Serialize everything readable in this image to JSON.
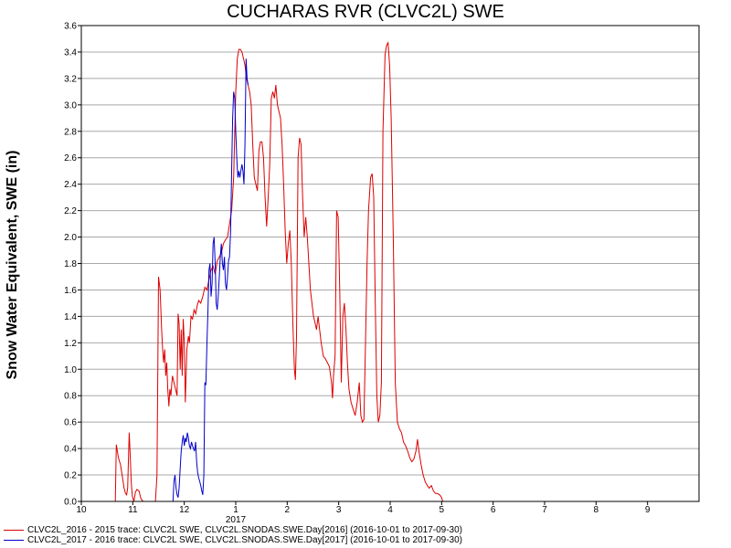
{
  "chart_data": {
    "type": "line",
    "title": "CUCHARAS RVR (CLVC2L) SWE",
    "ylabel": "Snow Water Equivalent, SWE (in)",
    "xlabel": "",
    "ylim": [
      0,
      3.6
    ],
    "yticks": [
      "0.0",
      "0.2",
      "0.4",
      "0.6",
      "0.8",
      "1.0",
      "1.2",
      "1.4",
      "1.6",
      "1.8",
      "2.0",
      "2.2",
      "2.4",
      "2.6",
      "2.8",
      "3.0",
      "3.2",
      "3.4",
      "3.6"
    ],
    "xlim": [
      10,
      22
    ],
    "xticks": [
      {
        "x": 10,
        "label": "10"
      },
      {
        "x": 11,
        "label": "11"
      },
      {
        "x": 12,
        "label": "12"
      },
      {
        "x": 13,
        "label": "1"
      },
      {
        "x": 14,
        "label": "2"
      },
      {
        "x": 15,
        "label": "3"
      },
      {
        "x": 16,
        "label": "4"
      },
      {
        "x": 17,
        "label": "5"
      },
      {
        "x": 18,
        "label": "6"
      },
      {
        "x": 19,
        "label": "7"
      },
      {
        "x": 20,
        "label": "8"
      },
      {
        "x": 21,
        "label": "9"
      }
    ],
    "year_label": {
      "x": 13,
      "label": "2017"
    },
    "grid": true,
    "legend_position": "bottom-left",
    "series": [
      {
        "name": "CLVC2L_2016 - 2015 trace: CLVC2L SWE, CLVC2L.SNODAS.SWE.Day[2016] (2016-10-01 to 2017-09-30)",
        "color": "#dd0000",
        "points": [
          [
            10.66,
            0.0
          ],
          [
            10.68,
            0.43
          ],
          [
            10.72,
            0.33
          ],
          [
            10.76,
            0.28
          ],
          [
            10.8,
            0.18
          ],
          [
            10.83,
            0.1
          ],
          [
            10.86,
            0.06
          ],
          [
            10.88,
            0.05
          ],
          [
            10.9,
            0.1
          ],
          [
            10.93,
            0.52
          ],
          [
            10.95,
            0.35
          ],
          [
            10.97,
            0.15
          ],
          [
            10.99,
            0.04
          ],
          [
            11.02,
            0.0
          ],
          [
            11.05,
            0.07
          ],
          [
            11.08,
            0.09
          ],
          [
            11.12,
            0.08
          ],
          [
            11.16,
            0.02
          ],
          [
            11.2,
            0.0
          ],
          [
            11.44,
            0.0
          ],
          [
            11.47,
            0.2
          ],
          [
            11.5,
            1.7
          ],
          [
            11.53,
            1.6
          ],
          [
            11.56,
            1.3
          ],
          [
            11.58,
            1.15
          ],
          [
            11.6,
            1.05
          ],
          [
            11.62,
            1.15
          ],
          [
            11.64,
            0.95
          ],
          [
            11.66,
            1.05
          ],
          [
            11.68,
            0.85
          ],
          [
            11.7,
            0.72
          ],
          [
            11.72,
            0.85
          ],
          [
            11.74,
            0.8
          ],
          [
            11.77,
            0.95
          ],
          [
            11.8,
            0.9
          ],
          [
            11.83,
            0.85
          ],
          [
            11.86,
            0.8
          ],
          [
            11.88,
            1.42
          ],
          [
            11.9,
            1.35
          ],
          [
            11.92,
            1.0
          ],
          [
            11.94,
            1.3
          ],
          [
            11.96,
            0.95
          ],
          [
            11.98,
            1.38
          ],
          [
            12.0,
            1.2
          ],
          [
            12.02,
            0.75
          ],
          [
            12.05,
            1.15
          ],
          [
            12.08,
            1.25
          ],
          [
            12.1,
            1.2
          ],
          [
            12.13,
            1.4
          ],
          [
            12.16,
            1.38
          ],
          [
            12.19,
            1.45
          ],
          [
            12.22,
            1.42
          ],
          [
            12.25,
            1.48
          ],
          [
            12.28,
            1.52
          ],
          [
            12.32,
            1.5
          ],
          [
            12.36,
            1.55
          ],
          [
            12.4,
            1.62
          ],
          [
            12.44,
            1.6
          ],
          [
            12.48,
            1.68
          ],
          [
            12.52,
            1.75
          ],
          [
            12.56,
            1.78
          ],
          [
            12.6,
            1.72
          ],
          [
            12.64,
            1.82
          ],
          [
            12.68,
            1.85
          ],
          [
            12.72,
            1.88
          ],
          [
            12.76,
            1.95
          ],
          [
            12.8,
            1.98
          ],
          [
            12.84,
            2.0
          ],
          [
            12.88,
            2.1
          ],
          [
            12.92,
            2.2
          ],
          [
            12.96,
            2.45
          ],
          [
            13.0,
            3.1
          ],
          [
            13.03,
            3.35
          ],
          [
            13.06,
            3.42
          ],
          [
            13.09,
            3.42
          ],
          [
            13.12,
            3.4
          ],
          [
            13.15,
            3.35
          ],
          [
            13.18,
            3.3
          ],
          [
            13.21,
            3.2
          ],
          [
            13.24,
            3.15
          ],
          [
            13.27,
            3.1
          ],
          [
            13.3,
            3.0
          ],
          [
            13.33,
            2.7
          ],
          [
            13.36,
            2.45
          ],
          [
            13.39,
            2.4
          ],
          [
            13.42,
            2.35
          ],
          [
            13.45,
            2.65
          ],
          [
            13.48,
            2.72
          ],
          [
            13.51,
            2.72
          ],
          [
            13.54,
            2.6
          ],
          [
            13.57,
            2.3
          ],
          [
            13.6,
            2.08
          ],
          [
            13.63,
            2.3
          ],
          [
            13.66,
            2.55
          ],
          [
            13.69,
            3.05
          ],
          [
            13.72,
            3.1
          ],
          [
            13.75,
            3.05
          ],
          [
            13.78,
            3.15
          ],
          [
            13.81,
            3.0
          ],
          [
            13.84,
            2.95
          ],
          [
            13.87,
            2.9
          ],
          [
            13.9,
            2.7
          ],
          [
            13.93,
            2.4
          ],
          [
            13.96,
            2.05
          ],
          [
            13.99,
            1.8
          ],
          [
            14.02,
            1.95
          ],
          [
            14.05,
            2.05
          ],
          [
            14.08,
            1.8
          ],
          [
            14.11,
            1.35
          ],
          [
            14.14,
            1.0
          ],
          [
            14.16,
            0.92
          ],
          [
            14.18,
            1.25
          ],
          [
            14.21,
            2.6
          ],
          [
            14.24,
            2.75
          ],
          [
            14.27,
            2.7
          ],
          [
            14.3,
            2.3
          ],
          [
            14.33,
            2.0
          ],
          [
            14.36,
            2.15
          ],
          [
            14.39,
            2.0
          ],
          [
            14.42,
            1.8
          ],
          [
            14.45,
            1.6
          ],
          [
            14.48,
            1.5
          ],
          [
            14.51,
            1.4
          ],
          [
            14.54,
            1.35
          ],
          [
            14.57,
            1.3
          ],
          [
            14.6,
            1.4
          ],
          [
            14.63,
            1.3
          ],
          [
            14.66,
            1.2
          ],
          [
            14.7,
            1.1
          ],
          [
            14.74,
            1.08
          ],
          [
            14.78,
            1.05
          ],
          [
            14.82,
            1.02
          ],
          [
            14.86,
            0.9
          ],
          [
            14.88,
            0.78
          ],
          [
            14.9,
            0.95
          ],
          [
            14.93,
            1.1
          ],
          [
            14.96,
            2.2
          ],
          [
            14.99,
            2.15
          ],
          [
            15.02,
            1.6
          ],
          [
            15.05,
            0.9
          ],
          [
            15.08,
            1.4
          ],
          [
            15.11,
            1.5
          ],
          [
            15.14,
            1.3
          ],
          [
            15.17,
            1.05
          ],
          [
            15.2,
            0.85
          ],
          [
            15.24,
            0.75
          ],
          [
            15.28,
            0.7
          ],
          [
            15.32,
            0.65
          ],
          [
            15.36,
            0.75
          ],
          [
            15.4,
            0.9
          ],
          [
            15.43,
            0.65
          ],
          [
            15.46,
            0.6
          ],
          [
            15.49,
            0.62
          ],
          [
            15.52,
            1.2
          ],
          [
            15.55,
            1.8
          ],
          [
            15.58,
            2.2
          ],
          [
            15.62,
            2.45
          ],
          [
            15.65,
            2.48
          ],
          [
            15.68,
            2.3
          ],
          [
            15.71,
            1.5
          ],
          [
            15.74,
            0.8
          ],
          [
            15.77,
            0.6
          ],
          [
            15.8,
            0.65
          ],
          [
            15.83,
            0.9
          ],
          [
            15.86,
            2.8
          ],
          [
            15.9,
            3.38
          ],
          [
            15.93,
            3.45
          ],
          [
            15.96,
            3.47
          ],
          [
            15.99,
            3.3
          ],
          [
            16.02,
            2.9
          ],
          [
            16.06,
            2.0
          ],
          [
            16.1,
            0.9
          ],
          [
            16.14,
            0.6
          ],
          [
            16.18,
            0.55
          ],
          [
            16.22,
            0.52
          ],
          [
            16.26,
            0.45
          ],
          [
            16.3,
            0.42
          ],
          [
            16.34,
            0.38
          ],
          [
            16.38,
            0.33
          ],
          [
            16.42,
            0.3
          ],
          [
            16.46,
            0.32
          ],
          [
            16.5,
            0.38
          ],
          [
            16.53,
            0.47
          ],
          [
            16.56,
            0.38
          ],
          [
            16.6,
            0.28
          ],
          [
            16.64,
            0.2
          ],
          [
            16.68,
            0.15
          ],
          [
            16.72,
            0.12
          ],
          [
            16.76,
            0.1
          ],
          [
            16.8,
            0.12
          ],
          [
            16.84,
            0.08
          ],
          [
            16.88,
            0.06
          ],
          [
            16.92,
            0.06
          ],
          [
            16.96,
            0.05
          ],
          [
            17.0,
            0.03
          ],
          [
            17.02,
            0.0
          ]
        ]
      },
      {
        "name": "CLVC2L_2017 - 2016 trace: CLVC2L SWE, CLVC2L.SNODAS.SWE.Day[2017] (2016-10-01 to 2017-09-30)",
        "color": "#0000cc",
        "points": [
          [
            11.78,
            0.0
          ],
          [
            11.8,
            0.15
          ],
          [
            11.82,
            0.2
          ],
          [
            11.84,
            0.1
          ],
          [
            11.86,
            0.05
          ],
          [
            11.88,
            0.03
          ],
          [
            11.9,
            0.1
          ],
          [
            11.92,
            0.25
          ],
          [
            11.94,
            0.38
          ],
          [
            11.96,
            0.45
          ],
          [
            11.98,
            0.5
          ],
          [
            12.0,
            0.42
          ],
          [
            12.02,
            0.48
          ],
          [
            12.04,
            0.45
          ],
          [
            12.06,
            0.52
          ],
          [
            12.08,
            0.48
          ],
          [
            12.1,
            0.42
          ],
          [
            12.12,
            0.4
          ],
          [
            12.14,
            0.45
          ],
          [
            12.16,
            0.42
          ],
          [
            12.18,
            0.4
          ],
          [
            12.2,
            0.38
          ],
          [
            12.22,
            0.45
          ],
          [
            12.24,
            0.3
          ],
          [
            12.26,
            0.22
          ],
          [
            12.28,
            0.18
          ],
          [
            12.3,
            0.15
          ],
          [
            12.32,
            0.12
          ],
          [
            12.34,
            0.08
          ],
          [
            12.36,
            0.05
          ],
          [
            12.38,
            0.2
          ],
          [
            12.4,
            0.9
          ],
          [
            12.42,
            0.88
          ],
          [
            12.44,
            1.2
          ],
          [
            12.46,
            1.45
          ],
          [
            12.48,
            1.75
          ],
          [
            12.5,
            1.8
          ],
          [
            12.52,
            1.55
          ],
          [
            12.54,
            1.65
          ],
          [
            12.56,
            1.95
          ],
          [
            12.58,
            2.0
          ],
          [
            12.6,
            1.8
          ],
          [
            12.62,
            1.5
          ],
          [
            12.64,
            1.45
          ],
          [
            12.66,
            1.55
          ],
          [
            12.68,
            1.7
          ],
          [
            12.7,
            1.85
          ],
          [
            12.72,
            1.95
          ],
          [
            12.74,
            1.8
          ],
          [
            12.76,
            1.75
          ],
          [
            12.78,
            1.85
          ],
          [
            12.8,
            1.65
          ],
          [
            12.82,
            1.6
          ],
          [
            12.84,
            1.7
          ],
          [
            12.86,
            1.82
          ],
          [
            12.88,
            1.85
          ],
          [
            12.9,
            2.05
          ],
          [
            12.92,
            2.5
          ],
          [
            12.94,
            2.9
          ],
          [
            12.96,
            3.1
          ],
          [
            12.98,
            3.05
          ],
          [
            13.0,
            2.8
          ],
          [
            13.02,
            2.6
          ],
          [
            13.04,
            2.45
          ],
          [
            13.06,
            2.5
          ],
          [
            13.08,
            2.45
          ],
          [
            13.1,
            2.5
          ],
          [
            13.12,
            2.55
          ],
          [
            13.14,
            2.5
          ],
          [
            13.16,
            2.4
          ],
          [
            13.18,
            2.7
          ],
          [
            13.2,
            3.35
          ],
          [
            13.22,
            3.2
          ],
          [
            13.24,
            3.15
          ]
        ]
      }
    ]
  }
}
